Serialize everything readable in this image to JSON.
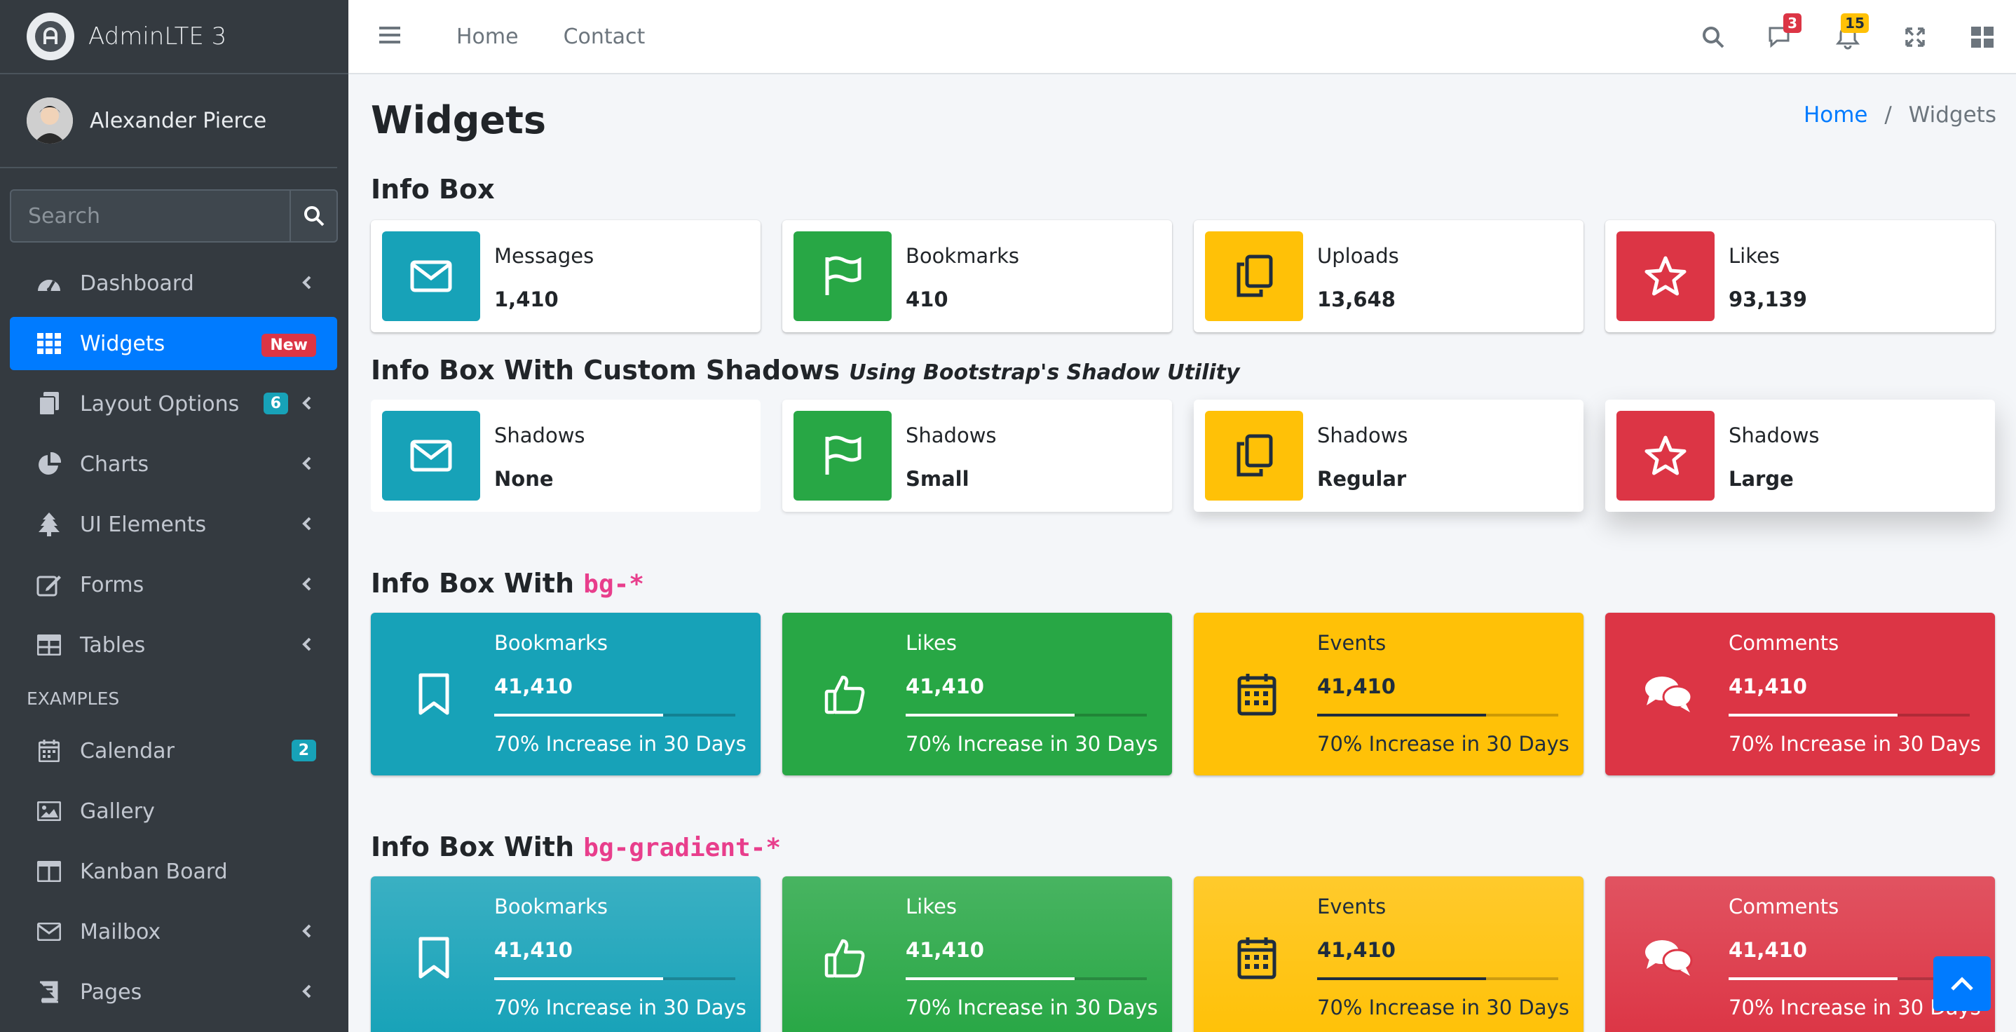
{
  "brand": {
    "name": "AdminLTE 3"
  },
  "user": {
    "name": "Alexander Pierce"
  },
  "sidebar_search": {
    "placeholder": "Search"
  },
  "nav": {
    "dashboard": "Dashboard",
    "widgets": "Widgets",
    "widgets_badge": "New",
    "layout": "Layout Options",
    "layout_badge": "6",
    "charts": "Charts",
    "ui": "UI Elements",
    "forms": "Forms",
    "tables": "Tables",
    "examples_header": "EXAMPLES",
    "calendar": "Calendar",
    "calendar_badge": "2",
    "gallery": "Gallery",
    "kanban": "Kanban Board",
    "mailbox": "Mailbox",
    "pages": "Pages"
  },
  "topnav": {
    "home": "Home",
    "contact": "Contact",
    "messages_badge": "3",
    "notifications_badge": "15"
  },
  "page": {
    "title": "Widgets",
    "breadcrumb_home": "Home",
    "breadcrumb_sep": "/",
    "breadcrumb_current": "Widgets"
  },
  "sections": {
    "s1": "Info Box",
    "s2": "Info Box With Custom Shadows",
    "s2_note": "Using Bootstrap's Shadow Utility",
    "s3": "Info Box With",
    "s3_code": "bg-*",
    "s4": "Info Box With",
    "s4_code": "bg-gradient-*"
  },
  "infoboxes": [
    {
      "text": "Messages",
      "number": "1,410",
      "icon": "envelope-icon",
      "color": "#17a2b8"
    },
    {
      "text": "Bookmarks",
      "number": "410",
      "icon": "flag-icon",
      "color": "#28a745"
    },
    {
      "text": "Uploads",
      "number": "13,648",
      "icon": "copy-icon",
      "color": "#ffc107"
    },
    {
      "text": "Likes",
      "number": "93,139",
      "icon": "star-icon",
      "color": "#dc3545"
    }
  ],
  "shadowboxes": [
    {
      "text": "Shadows",
      "number": "None"
    },
    {
      "text": "Shadows",
      "number": "Small"
    },
    {
      "text": "Shadows",
      "number": "Regular"
    },
    {
      "text": "Shadows",
      "number": "Large"
    }
  ],
  "bgboxes": [
    {
      "text": "Bookmarks",
      "number": "41,410",
      "progress": 0.7,
      "desc": "70% Increase in 30 Days",
      "icon": "bookmark-icon"
    },
    {
      "text": "Likes",
      "number": "41,410",
      "progress": 0.7,
      "desc": "70% Increase in 30 Days",
      "icon": "thumbs-up-icon"
    },
    {
      "text": "Events",
      "number": "41,410",
      "progress": 0.7,
      "desc": "70% Increase in 30 Days",
      "icon": "calendar-icon"
    },
    {
      "text": "Comments",
      "number": "41,410",
      "progress": 0.7,
      "desc": "70% Increase in 30 Days",
      "icon": "comments-icon"
    }
  ],
  "gradboxes": [
    {
      "text": "Bookmarks",
      "number": "41,410",
      "progress": 0.7,
      "desc": "70% Increase in 30 Days"
    },
    {
      "text": "Likes",
      "number": "41,410",
      "progress": 0.7,
      "desc": "70% Increase in 30 Days"
    },
    {
      "text": "Events",
      "number": "41,410",
      "progress": 0.7,
      "desc": "70% Increase in 30 Days"
    },
    {
      "text": "Comments",
      "number": "41,410",
      "progress": 0.7,
      "desc": "70% Increase in 30 Days"
    }
  ]
}
